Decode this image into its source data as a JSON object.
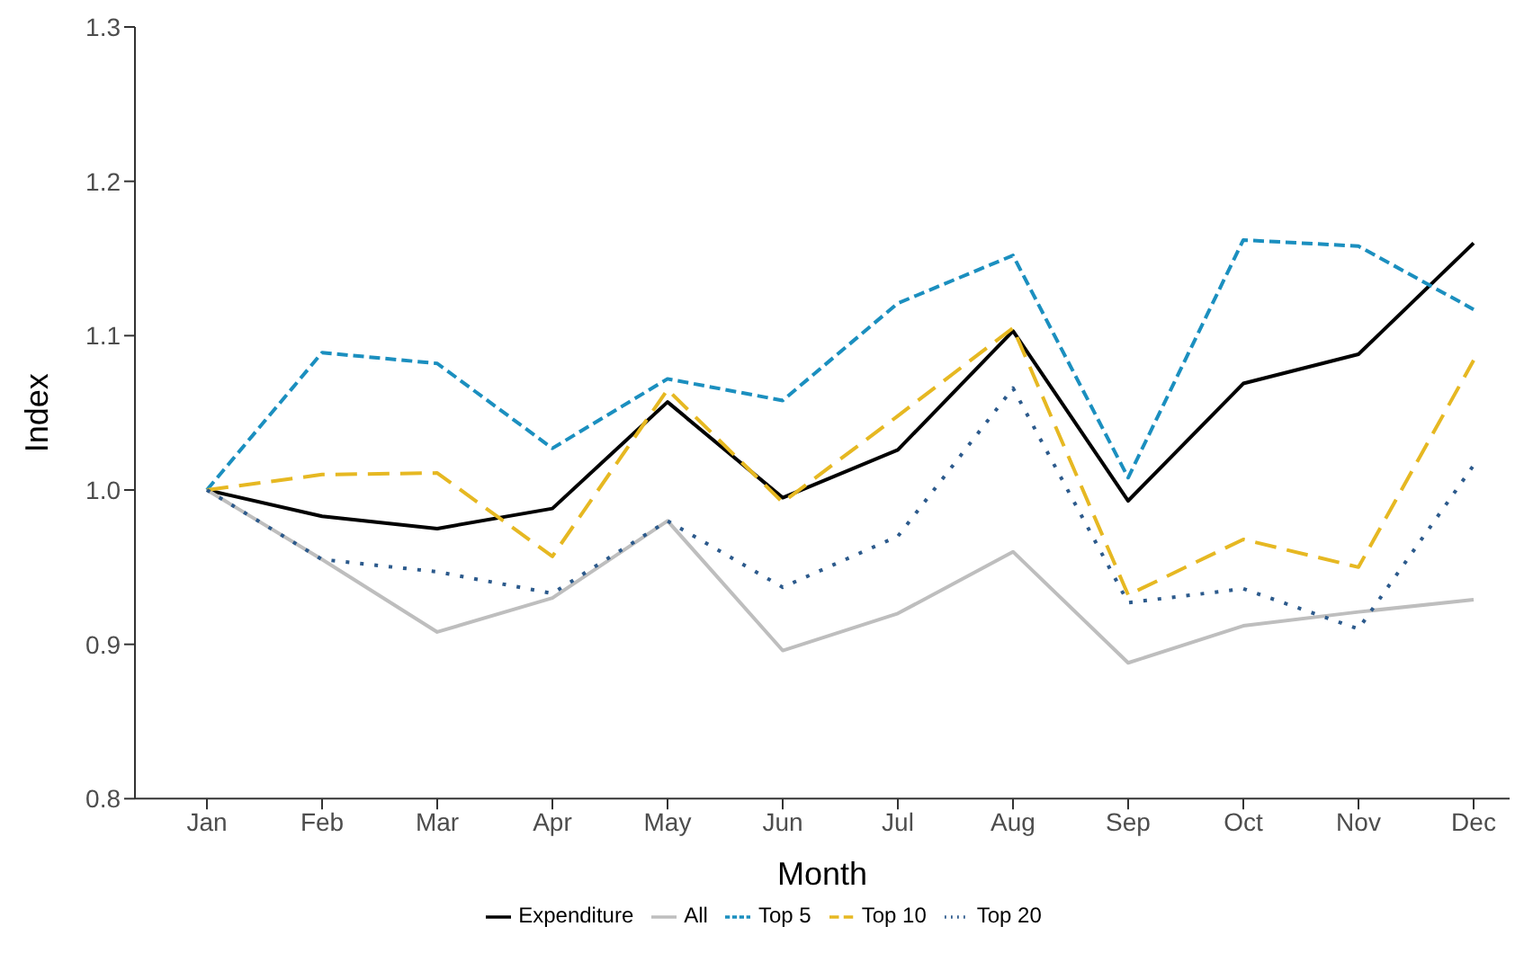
{
  "chart_data": {
    "type": "line",
    "xlabel": "Month",
    "ylabel": "Index",
    "categories": [
      "Jan",
      "Feb",
      "Mar",
      "Apr",
      "May",
      "Jun",
      "Jul",
      "Aug",
      "Sep",
      "Oct",
      "Nov",
      "Dec"
    ],
    "series": [
      {
        "name": "Expenditure",
        "color": "#000000",
        "line_style": "solid",
        "values": [
          1.0,
          0.983,
          0.975,
          0.988,
          1.057,
          0.995,
          1.026,
          1.103,
          0.993,
          1.069,
          1.088,
          1.16
        ]
      },
      {
        "name": "All",
        "color": "#bebebe",
        "line_style": "solid",
        "values": [
          1.0,
          0.955,
          0.908,
          0.93,
          0.98,
          0.896,
          0.92,
          0.96,
          0.888,
          0.912,
          0.921,
          0.929
        ]
      },
      {
        "name": "Top 5",
        "color": "#1b8fbf",
        "line_style": "dashed",
        "values": [
          1.0,
          1.089,
          1.082,
          1.027,
          1.072,
          1.058,
          1.121,
          1.152,
          1.008,
          1.162,
          1.158,
          1.117
        ]
      },
      {
        "name": "Top 10",
        "color": "#e6b822",
        "line_style": "dashed",
        "values": [
          1.0,
          1.01,
          1.011,
          0.957,
          1.065,
          0.992,
          1.048,
          1.105,
          0.932,
          0.968,
          0.95,
          1.084
        ]
      },
      {
        "name": "Top 20",
        "color": "#2c5a8c",
        "line_style": "dotted",
        "values": [
          1.0,
          0.955,
          0.947,
          0.933,
          0.98,
          0.937,
          0.97,
          1.066,
          0.927,
          0.936,
          0.91,
          1.016
        ]
      }
    ],
    "ylim": [
      0.8,
      1.3
    ],
    "yticks": [
      {
        "value": 0.8,
        "label": "0.8"
      },
      {
        "value": 0.9,
        "label": "0.9"
      },
      {
        "value": 1.0,
        "label": "1.0"
      },
      {
        "value": 1.1,
        "label": "1.1"
      },
      {
        "value": 1.2,
        "label": "1.2"
      },
      {
        "value": 1.3,
        "label": "1.3"
      }
    ],
    "grid": false,
    "legend": "bottom",
    "marker": "none"
  }
}
